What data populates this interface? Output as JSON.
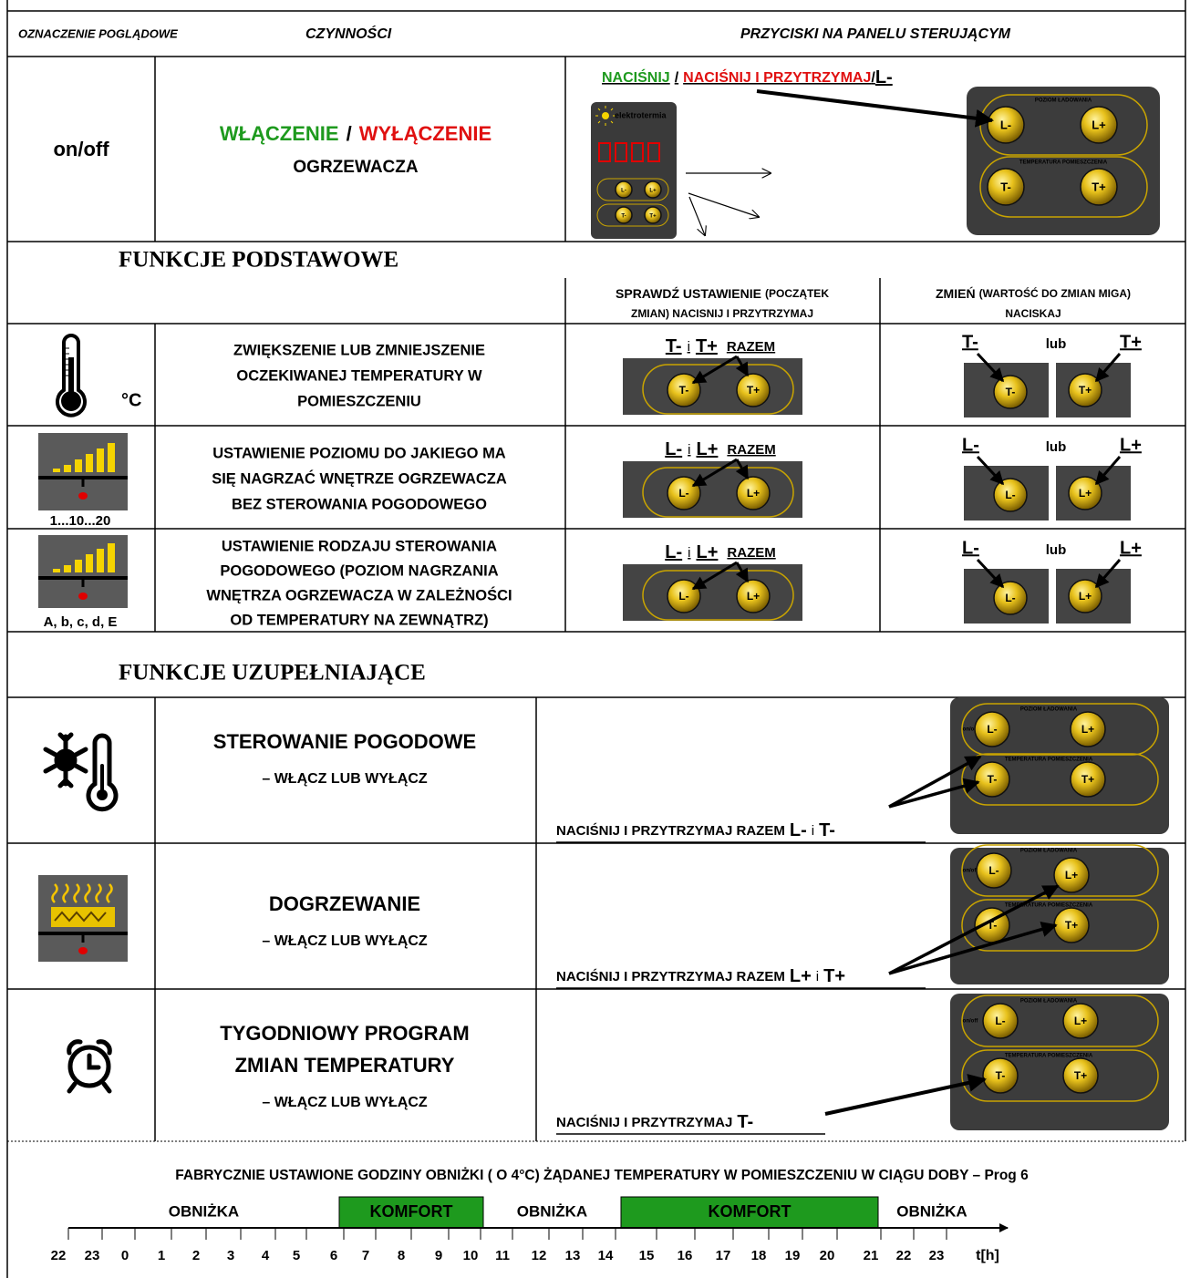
{
  "header": {
    "symbol": "OZNACZENIE POGLĄDOWE",
    "actions": "CZYNNOŚCI",
    "buttons": "PRZYCISKI NA PANELU STERUJĄCYM"
  },
  "power": {
    "symbol": "on/off",
    "on": "WŁĄCZENIE",
    "separator": "/",
    "off": "WYŁĄCZENIE",
    "object": "OGRZEWACZA",
    "hint": {
      "press": "NACIŚNIJ",
      "separator": "/",
      "hold": "NACIŚNIJ I PRZYTRZYMAJ",
      "separator2": "/",
      "button": "L-"
    }
  },
  "panel": {
    "brand": "elektrotermia",
    "charge_level": "POZIOM ŁADOWANIA",
    "room_temperature": "TEMPERATURA POMIESZCZENIA",
    "power": "on/off",
    "buttons": [
      "L-",
      "L+",
      "T-",
      "T+"
    ]
  },
  "basic": {
    "title": "FUNKCJE PODSTAWOWE",
    "check": {
      "title": "SPRAWDŹ  USTAWIENIE",
      "note": [
        "(POCZĄTEK",
        "ZMIAN) NACISNIJ I PRZYTRZYMAJ"
      ]
    },
    "change": {
      "title": "ZMIEŃ",
      "note": [
        "(WARTOŚĆ DO ZMIAN MIGA)",
        "NACISKAJ"
      ]
    },
    "rows": [
      {
        "symbol": "°C",
        "action": [
          "ZWIĘKSZENIE LUB ZMNIEJSZENIE",
          "OCZEKIWANEJ TEMPERATURY W",
          "POMIESZCZENIU"
        ],
        "together": {
          "first": "T-",
          "and": "i",
          "second": "T+",
          "word": "RAZEM"
        },
        "single": {
          "first": "T-",
          "or": "lub",
          "second": "T+"
        }
      },
      {
        "symbol": "1...10...20",
        "action": [
          "USTAWIENIE POZIOMU DO JAKIEGO MA",
          "SIĘ NAGRZAĆ  WNĘTRZE OGRZEWACZA",
          "BEZ STEROWANIA POGODOWEGO"
        ],
        "together": {
          "first": "L-",
          "and": "i",
          "second": "L+",
          "word": "RAZEM"
        },
        "single": {
          "first": "L-",
          "or": "lub",
          "second": "L+"
        }
      },
      {
        "symbol": "A, b, c, d, E",
        "action": [
          "USTAWIENIE RODZAJU STEROWANIA",
          "POGODOWEGO (POZIOM NAGRZANIA",
          "WNĘTRZA OGRZEWACZA W ZALEŻNOŚCI",
          "OD TEMPERATURY NA ZEWNĄTRZ)"
        ],
        "together": {
          "first": "L-",
          "and": "i",
          "second": "L+",
          "word": "RAZEM"
        },
        "single": {
          "first": "L-",
          "or": "lub",
          "second": "L+"
        }
      }
    ]
  },
  "extra": {
    "title": "FUNKCJE UZUPEŁNIAJĄCE",
    "rows": [
      {
        "action": [
          "STEROWANIE POGODOWE"
        ],
        "toggle": "– WŁĄCZ LUB WYŁĄCZ",
        "instruction": "NACIŚNIJ I PRZYTRZYMAJ RAZEM",
        "first": "L-",
        "and": "i",
        "second": "T-"
      },
      {
        "action": [
          "DOGRZEWANIE"
        ],
        "toggle": "– WŁĄCZ LUB WYŁĄCZ",
        "instruction": "NACIŚNIJ I PRZYTRZYMAJ RAZEM",
        "first": "L+",
        "and": "i",
        "second": "T+"
      },
      {
        "action": [
          "TYGODNIOWY PROGRAM",
          "ZMIAN TEMPERATURY"
        ],
        "toggle": "– WŁĄCZ LUB WYŁĄCZ",
        "instruction": "NACIŚNIJ I PRZYTRZYMAJ",
        "first": "T-"
      }
    ]
  },
  "schedule": {
    "title": "FABRYCZNIE USTAWIONE GODZINY OBNIŻKI ( O 4°C) ŻĄDANEJ TEMPERATURY W POMIESZCZENIU W CIĄGU DOBY – Prog 6",
    "segments": [
      {
        "label": "OBNIŻKA"
      },
      {
        "label": "KOMFORT",
        "color": "#1e9a1e"
      },
      {
        "label": "OBNIŻKA"
      },
      {
        "label": "KOMFORT",
        "color": "#1e9a1e"
      },
      {
        "label": "OBNIŻKA"
      }
    ],
    "hours": [
      "22",
      "23",
      "0",
      "1",
      "2",
      "3",
      "4",
      "5",
      "6",
      "7",
      "8",
      "9",
      "10",
      "11",
      "12",
      "13",
      "14",
      "15",
      "16",
      "17",
      "18",
      "19",
      "20",
      "21",
      "22",
      "23"
    ],
    "axis_label": "t[h]"
  }
}
